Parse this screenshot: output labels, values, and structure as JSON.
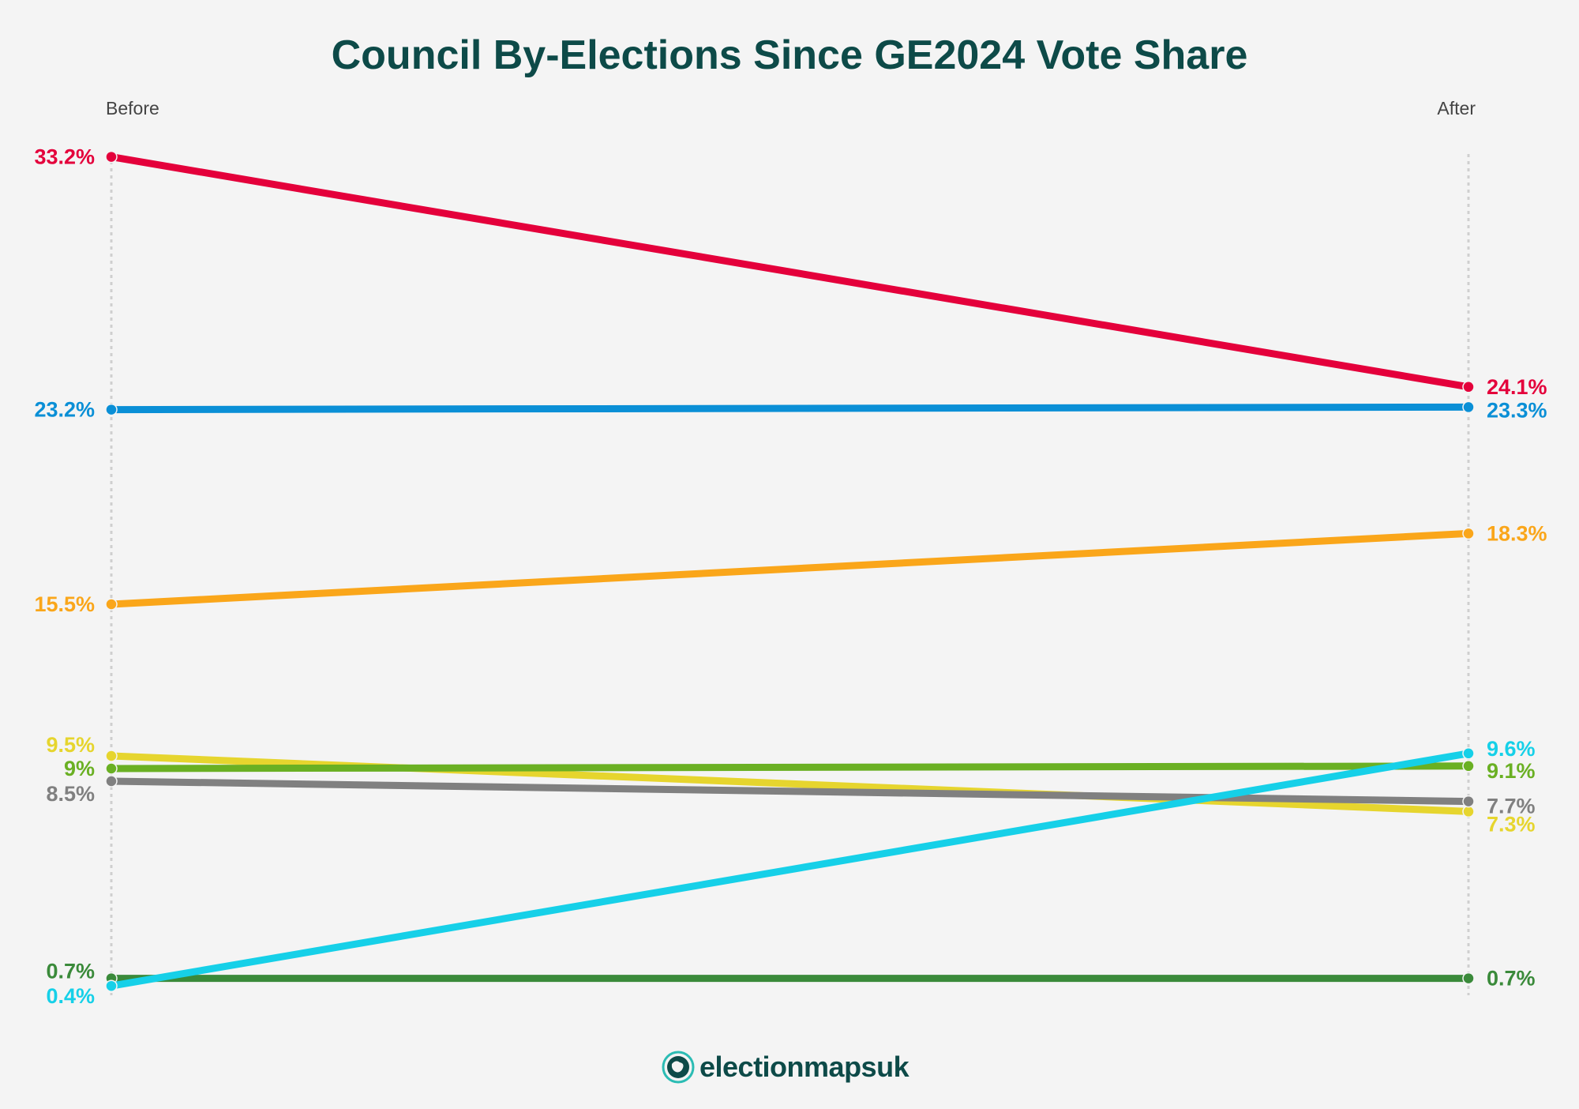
{
  "chart_data": {
    "type": "line",
    "title": "Council By-Elections Since GE2024 Vote Share",
    "categories": [
      "Before",
      "After"
    ],
    "grid": false,
    "ylim": [
      0,
      33.2
    ],
    "series": [
      {
        "color": "#e4003b",
        "values": [
          33.2,
          24.1
        ],
        "labels": [
          "33.2%",
          "24.1%"
        ]
      },
      {
        "color": "#0a8fd6",
        "values": [
          23.2,
          23.3
        ],
        "labels": [
          "23.2%",
          "23.3%"
        ]
      },
      {
        "color": "#faa61a",
        "values": [
          15.5,
          18.3
        ],
        "labels": [
          "15.5%",
          "18.3%"
        ]
      },
      {
        "color": "#e6d52e",
        "values": [
          9.5,
          7.3
        ],
        "labels": [
          "9.5%",
          "7.3%"
        ]
      },
      {
        "color": "#6ab023",
        "values": [
          9,
          9.1
        ],
        "labels": [
          "9%",
          "9.1%"
        ]
      },
      {
        "color": "#808080",
        "values": [
          8.5,
          7.7
        ],
        "labels": [
          "8.5%",
          "7.7%"
        ]
      },
      {
        "color": "#3a8a3a",
        "values": [
          0.7,
          0.7
        ],
        "labels": [
          "0.7%",
          "0.7%"
        ]
      },
      {
        "color": "#16d0e8",
        "values": [
          0.4,
          9.6
        ],
        "labels": [
          "0.4%",
          "9.6%"
        ]
      }
    ]
  },
  "logo": {
    "text": "electionmapsuk"
  }
}
